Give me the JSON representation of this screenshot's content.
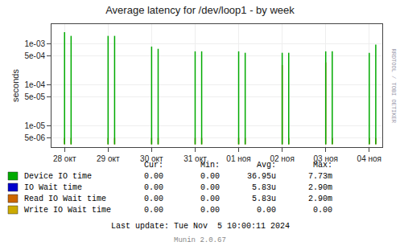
{
  "chart_data": {
    "type": "stem",
    "title": "Average latency for /dev/loop1 - by week",
    "ylabel": "seconds",
    "x": [
      0.0,
      0.15,
      1.0,
      1.15,
      2.0,
      2.15,
      3.0,
      3.15,
      4.0,
      4.15,
      5.0,
      5.15,
      6.0,
      6.15,
      7.0,
      7.15
    ],
    "base": 3.5e-06,
    "series": [
      {
        "name": "Device IO time",
        "color": "#00aa00",
        "values": [
          0.0019,
          0.00155,
          0.00155,
          0.00155,
          0.00085,
          0.00075,
          0.00065,
          0.00065,
          0.00065,
          0.0006,
          0.0006,
          0.0006,
          0.00065,
          0.00065,
          0.0006,
          0.00095
        ],
        "stats": [
          "0.00",
          "0.00",
          "36.95u",
          "7.73m"
        ]
      },
      {
        "name": "IO Wait time",
        "color": "#0000cc",
        "values": [
          null,
          null,
          null,
          null,
          null,
          null,
          null,
          null,
          null,
          null,
          null,
          null,
          null,
          null,
          null,
          null
        ],
        "stats": [
          "0.00",
          "0.00",
          "5.83u",
          "2.90m"
        ]
      },
      {
        "name": "Read IO Wait time",
        "color": "#cc6600",
        "values": [
          5e-06,
          5e-06,
          5e-06,
          5e-06,
          5e-06,
          5e-06,
          5e-06,
          5e-06,
          5e-06,
          5e-06,
          0.0003,
          5e-06,
          0.00035,
          5e-06,
          5e-06,
          5e-06
        ],
        "stats": [
          "0.00",
          "0.00",
          "5.83u",
          "2.90m"
        ]
      },
      {
        "name": "Write IO Wait time",
        "color": "#ccaa00",
        "values": [
          null,
          null,
          null,
          null,
          null,
          null,
          null,
          null,
          null,
          null,
          null,
          null,
          null,
          null,
          null,
          null
        ],
        "stats": [
          "0.00",
          "0.00",
          "0.00",
          "0.00"
        ]
      }
    ],
    "stats_headers": [
      "Cur:",
      "Min:",
      "Avg:",
      "Max:"
    ],
    "xlim": [
      -0.3,
      7.3
    ],
    "xticks": [
      {
        "value": 0,
        "label": "28 окт"
      },
      {
        "value": 1,
        "label": "29 окт"
      },
      {
        "value": 2,
        "label": "30 окт"
      },
      {
        "value": 3,
        "label": "31 окт"
      },
      {
        "value": 4,
        "label": "01 ноя"
      },
      {
        "value": 5,
        "label": "02 ноя"
      },
      {
        "value": 6,
        "label": "03 ноя"
      },
      {
        "value": 7,
        "label": "04 ноя"
      }
    ],
    "ylim": [
      3e-06,
      0.003
    ],
    "yticks": [
      {
        "value": 5e-06,
        "label": "5e-06"
      },
      {
        "value": 1e-05,
        "label": "1e-05"
      },
      {
        "value": 5e-05,
        "label": "5e-05"
      },
      {
        "value": 0.0001,
        "label": "1e-04"
      },
      {
        "value": 0.0005,
        "label": "5e-04"
      },
      {
        "value": 0.001,
        "label": "1e-03"
      }
    ],
    "log": "y",
    "grid": true,
    "legend": "bottom",
    "annotations": [
      "Last update: Tue Nov  5 10:00:11 2024",
      "Munin 2.0.67",
      "RRDTOOL / TOBI OETIKER"
    ]
  }
}
